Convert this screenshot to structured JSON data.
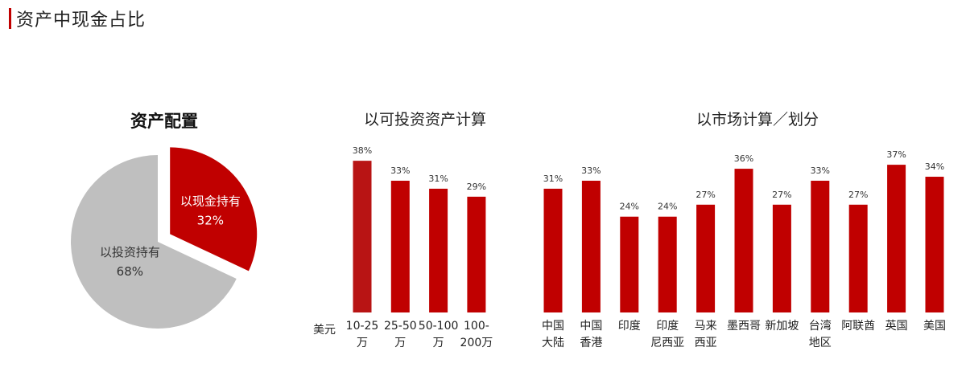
{
  "page": {
    "title": "资产中现金占比"
  },
  "chart_data": [
    {
      "type": "pie",
      "title": "资产配置",
      "slices": [
        {
          "label": "以现金持有",
          "value": 32,
          "value_label": "32%",
          "color": "#c00000",
          "exploded": true
        },
        {
          "label": "以投资持有",
          "value": 68,
          "value_label": "68%",
          "color": "#bfbfbf",
          "exploded": false
        }
      ]
    },
    {
      "type": "bar",
      "title": "以可投资资产计算",
      "unit_label": "美元",
      "categories": [
        [
          "10-25",
          "万"
        ],
        [
          "25-50",
          "万"
        ],
        [
          "50-100",
          "万"
        ],
        [
          "100-",
          "200万"
        ]
      ],
      "values": [
        38,
        33,
        31,
        29
      ],
      "value_labels": [
        "38%",
        "33%",
        "31%",
        "29%"
      ],
      "colors": [
        "#b81414",
        "#c00000",
        "#c00000",
        "#c00000"
      ]
    },
    {
      "type": "bar",
      "title": "以市场计算／划分",
      "categories": [
        [
          "中国",
          "大陆"
        ],
        [
          "中国",
          "香港"
        ],
        [
          "印度"
        ],
        [
          "印度",
          "尼西亚"
        ],
        [
          "马来",
          "西亚"
        ],
        [
          "墨西哥"
        ],
        [
          "新加坡"
        ],
        [
          "台湾",
          "地区"
        ],
        [
          "阿联酋"
        ],
        [
          "英国"
        ],
        [
          "美国"
        ]
      ],
      "values": [
        31,
        33,
        24,
        24,
        27,
        36,
        27,
        33,
        27,
        37,
        34
      ],
      "value_labels": [
        "31%",
        "33%",
        "24%",
        "24%",
        "27%",
        "36%",
        "27%",
        "33%",
        "27%",
        "37%",
        "34%"
      ],
      "color": "#c00000"
    }
  ]
}
